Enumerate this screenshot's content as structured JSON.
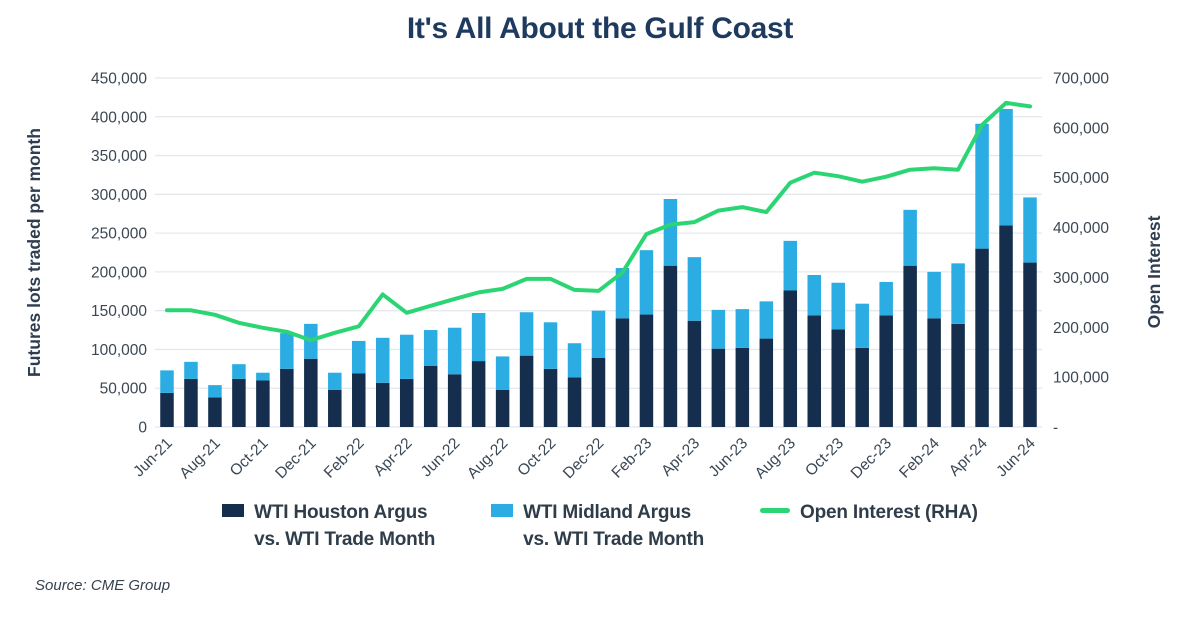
{
  "title": "It's All About the Gulf Coast",
  "source_note": "Source: CME Group",
  "legend": {
    "houston": {
      "line1": "WTI Houston Argus",
      "line2": "vs. WTI Trade Month",
      "swatch_color": "#152E4D"
    },
    "midland": {
      "line1": "WTI Midland Argus",
      "line2": "vs. WTI Trade Month",
      "swatch_color": "#2BACE2"
    },
    "open_interest": {
      "line1": "Open Interest (RHA)",
      "swatch_color": "#2BD573"
    }
  },
  "chart_data": {
    "type": "bar",
    "subtype": "stacked-bar-with-line-combo",
    "grid": true,
    "legend_position": "bottom",
    "categories": [
      "Jun-21",
      "Jul-21",
      "Aug-21",
      "Sep-21",
      "Oct-21",
      "Nov-21",
      "Dec-21",
      "Jan-22",
      "Feb-22",
      "Mar-22",
      "Apr-22",
      "May-22",
      "Jun-22",
      "Jul-22",
      "Aug-22",
      "Sep-22",
      "Oct-22",
      "Nov-22",
      "Dec-22",
      "Jan-23",
      "Feb-23",
      "Mar-23",
      "Apr-23",
      "May-23",
      "Jun-23",
      "Jul-23",
      "Aug-23",
      "Sep-23",
      "Oct-23",
      "Nov-23",
      "Dec-23",
      "Jan-24",
      "Feb-24",
      "Mar-24",
      "Apr-24",
      "May-24",
      "Jun-24"
    ],
    "x_tick_every": 2,
    "left_axis": {
      "title": "Futures lots traded per month",
      "max": 450000,
      "tick_labels": [
        "450,000",
        "400,000",
        "350,000",
        "300,000",
        "250,000",
        "200,000",
        "150,000",
        "100,000",
        "50,000",
        "0"
      ]
    },
    "right_axis": {
      "title": "Open Interest",
      "max": 700000,
      "tick_labels": [
        "700,000",
        "600,000",
        "500,000",
        "400,000",
        "300,000",
        "200,000",
        "100,000",
        "-"
      ]
    },
    "series": [
      {
        "name": "WTI Houston Argus vs. WTI Trade Month",
        "render": "bar",
        "stack": "lots",
        "axis": "left",
        "color": "#152E4D",
        "values": [
          44000,
          62000,
          38000,
          62000,
          60000,
          75000,
          88000,
          48000,
          69000,
          57000,
          62000,
          79000,
          68000,
          85000,
          48000,
          92000,
          75000,
          64000,
          89000,
          140000,
          145000,
          208000,
          137000,
          101000,
          102000,
          114000,
          176000,
          144000,
          126000,
          102000,
          144000,
          208000,
          140000,
          133000,
          230000,
          260000,
          212000
        ]
      },
      {
        "name": "WTI Midland Argus vs. WTI Trade Month",
        "render": "bar",
        "stack": "lots",
        "axis": "left",
        "color": "#2BACE2",
        "values": [
          29000,
          22000,
          16000,
          19000,
          10000,
          46000,
          45000,
          22000,
          42000,
          58000,
          57000,
          46000,
          60000,
          62000,
          43000,
          56000,
          60000,
          44000,
          61000,
          65000,
          83000,
          86000,
          82000,
          50000,
          50000,
          48000,
          64000,
          52000,
          60000,
          57000,
          43000,
          72000,
          60000,
          78000,
          161000,
          150000,
          84000
        ]
      },
      {
        "name": "Open Interest (RHA)",
        "render": "line",
        "axis": "right",
        "color": "#2BD573",
        "values": [
          234000,
          234000,
          225000,
          209000,
          199000,
          191000,
          174000,
          189000,
          202000,
          266000,
          229000,
          243000,
          257000,
          270000,
          277000,
          297000,
          297000,
          275000,
          273000,
          310000,
          387000,
          406000,
          411000,
          434000,
          441000,
          431000,
          490000,
          510000,
          503000,
          492000,
          502000,
          516000,
          519000,
          516000,
          606000,
          650000,
          643000
        ]
      }
    ],
    "colors": {
      "grid": "#E5E8EC",
      "tick_text": "#3A4754",
      "axis_title_text": "#2E3D4F",
      "title_text": "#1E3A5F"
    }
  }
}
